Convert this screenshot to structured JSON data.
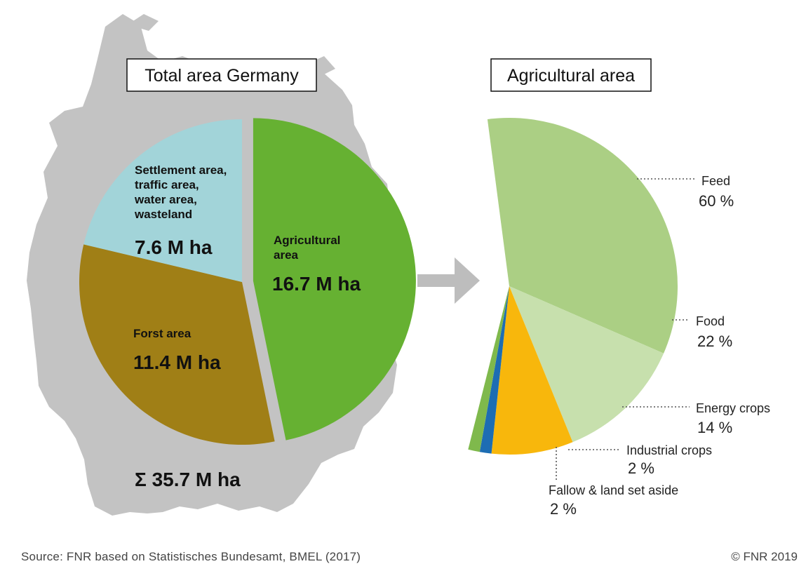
{
  "chart_data": [
    {
      "type": "pie",
      "title": "Total area Germany",
      "unit": "M ha",
      "total_label": "Σ 35.7 M ha",
      "slices": [
        {
          "label": "Agricultural area",
          "value": 16.7,
          "value_label": "16.7 M ha",
          "color": "#66b132",
          "exploded": true
        },
        {
          "label": "Forst area",
          "value": 11.4,
          "value_label": "11.4 M ha",
          "color": "#a07f16"
        },
        {
          "label": "Settlement area, traffic area, water area, wasteland",
          "value": 7.6,
          "value_label": "7.6 M ha",
          "color": "#a2d4d9"
        }
      ]
    },
    {
      "type": "pie",
      "title": "Agricultural area",
      "unit": "%",
      "slices": [
        {
          "label": "Feed",
          "value": 60,
          "value_label": "60 %",
          "color": "#abcf84"
        },
        {
          "label": "Food",
          "value": 22,
          "value_label": "22 %",
          "color": "#c7e0ad"
        },
        {
          "label": "Energy crops",
          "value": 14,
          "value_label": "14 %",
          "color": "#f8b70c"
        },
        {
          "label": "Industrial crops",
          "value": 2,
          "value_label": "2 %",
          "color": "#1d6db3"
        },
        {
          "label": "Fallow & land set aside",
          "value": 2,
          "value_label": "2 %",
          "color": "#7fb94c"
        }
      ]
    }
  ],
  "left_labels": {
    "settlement": [
      "Settlement area,",
      "traffic area,",
      "water area,",
      "wasteland"
    ],
    "agri": [
      "Agricultural",
      "area"
    ]
  },
  "footer": {
    "source": "Source: FNR based on Statistisches Bundesamt, BMEL (2017)",
    "copyright": "© FNR 2019"
  },
  "colors": {
    "map": "#c3c3c3",
    "arrow": "#bdbdbd",
    "leader": "#555555"
  }
}
